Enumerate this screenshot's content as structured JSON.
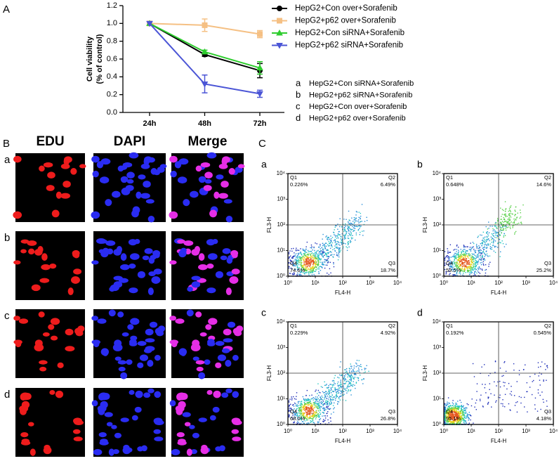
{
  "panel_labels": [
    "A",
    "B",
    "C"
  ],
  "chart_data": [
    {
      "type": "line",
      "ylabel": [
        "Cell viability",
        "(% of control)"
      ],
      "categories": [
        "24h",
        "48h",
        "72h"
      ],
      "ylim": [
        0,
        1.2
      ],
      "yticks": [
        {
          "value": 0,
          "label": "0.0"
        },
        0.2,
        0.4,
        0.6,
        0.8,
        {
          "value": 1,
          "label": "1.0"
        },
        1.2
      ],
      "series": [
        {
          "name": "HepG2+Con over+Sorafenib",
          "color": "#000000",
          "marker": "circle",
          "values": [
            1.0,
            0.65,
            0.47
          ],
          "errors": [
            0,
            0.02,
            0.08
          ]
        },
        {
          "name": "HepG2+p62 over+Sorafenib",
          "color": "#f5c084",
          "marker": "square",
          "values": [
            1.0,
            0.98,
            0.88
          ],
          "errors": [
            0,
            0.07,
            0.04
          ]
        },
        {
          "name": "HepG2+Con siRNA+Sorafenib",
          "color": "#2ecc2e",
          "marker": "triangle",
          "values": [
            1.0,
            0.68,
            0.5
          ],
          "errors": [
            0,
            0.02,
            0.07
          ]
        },
        {
          "name": "HepG2+p62 siRNA+Sorafenib",
          "color": "#4b55d6",
          "marker": "triangle-down",
          "values": [
            1.0,
            0.32,
            0.21
          ],
          "errors": [
            0,
            0.1,
            0.04
          ]
        }
      ],
      "key": [
        {
          "letter": "a",
          "text": "HepG2+Con siRNA+Sorafenib"
        },
        {
          "letter": "b",
          "text": "HepG2+p62 siRNA+Sorafenib"
        },
        {
          "letter": "c",
          "text": "HepG2+Con over+Sorafenib"
        },
        {
          "letter": "d",
          "text": "HepG2+p62 over+Sorafenib"
        }
      ]
    },
    {
      "type": "flow",
      "label": "a",
      "xlabel": "FL4-H",
      "ylabel": "FL3-H",
      "log": true,
      "xlim": [
        1,
        10000
      ],
      "ylim": [
        1,
        10000
      ],
      "xticks": [
        {
          "value": 1,
          "label": "10⁰"
        },
        {
          "value": 10,
          "label": "10¹"
        },
        {
          "value": 100,
          "label": "10²"
        },
        {
          "value": 1000,
          "label": "10³"
        },
        {
          "value": 10000,
          "label": "10⁴"
        }
      ],
      "yticks": [
        {
          "value": 1,
          "label": "10⁰"
        },
        {
          "value": 10,
          "label": "10¹"
        },
        {
          "value": 100,
          "label": "10²"
        },
        {
          "value": 1000,
          "label": "10³"
        },
        {
          "value": 10000,
          "label": "10⁴"
        }
      ],
      "gate": [
        100,
        100
      ],
      "quadrants": [
        "Q1",
        "Q2",
        "Q3",
        "Q4"
      ],
      "values": [
        0.226,
        6.49,
        18.7,
        74.6
      ],
      "value_labels": [
        "0.226%",
        "6.49%",
        "18.7%",
        "74.6%"
      ]
    },
    {
      "type": "flow",
      "label": "b",
      "xlabel": "FL4-H",
      "ylabel": "FL3-H",
      "log": true,
      "xlim": [
        1,
        10000
      ],
      "ylim": [
        1,
        10000
      ],
      "xticks": [
        {
          "value": 1,
          "label": "10⁰"
        },
        {
          "value": 10,
          "label": "10¹"
        },
        {
          "value": 100,
          "label": "10²"
        },
        {
          "value": 1000,
          "label": "10³"
        },
        {
          "value": 10000,
          "label": "10⁴"
        }
      ],
      "yticks": [
        {
          "value": 1,
          "label": "10⁰"
        },
        {
          "value": 10,
          "label": "10¹"
        },
        {
          "value": 100,
          "label": "10²"
        },
        {
          "value": 1000,
          "label": "10³"
        },
        {
          "value": 10000,
          "label": "10⁴"
        }
      ],
      "gate": [
        100,
        100
      ],
      "quadrants": [
        "Q1",
        "Q2",
        "Q3",
        "Q4"
      ],
      "values": [
        0.648,
        14.6,
        25.2,
        59.5
      ],
      "value_labels": [
        "0.648%",
        "14.6%",
        "25.2%",
        "59.5%"
      ]
    },
    {
      "type": "flow",
      "label": "c",
      "xlabel": "FL4-H",
      "ylabel": "FL3-H",
      "log": true,
      "xlim": [
        1,
        10000
      ],
      "ylim": [
        1,
        10000
      ],
      "xticks": [
        {
          "value": 1,
          "label": "10⁰"
        },
        {
          "value": 10,
          "label": "10¹"
        },
        {
          "value": 100,
          "label": "10²"
        },
        {
          "value": 1000,
          "label": "10³"
        },
        {
          "value": 10000,
          "label": "10⁴"
        }
      ],
      "yticks": [
        {
          "value": 1,
          "label": "10⁰"
        },
        {
          "value": 10,
          "label": "10¹"
        },
        {
          "value": 100,
          "label": "10²"
        },
        {
          "value": 1000,
          "label": "10³"
        },
        {
          "value": 10000,
          "label": "10⁴"
        }
      ],
      "gate": [
        100,
        100
      ],
      "quadrants": [
        "Q1",
        "Q2",
        "Q3",
        "Q4"
      ],
      "values": [
        0.229,
        4.92,
        26.8,
        68.0
      ],
      "value_labels": [
        "0.229%",
        "4.92%",
        "26.8%",
        "68.0%"
      ]
    },
    {
      "type": "flow",
      "label": "d",
      "xlabel": "FL4-H",
      "ylabel": "FL3-H",
      "log": true,
      "xlim": [
        1,
        10000
      ],
      "ylim": [
        1,
        10000
      ],
      "xticks": [
        {
          "value": 1,
          "label": "10⁰"
        },
        {
          "value": 10,
          "label": "10¹"
        },
        {
          "value": 100,
          "label": "10²"
        },
        {
          "value": 1000,
          "label": "10³"
        },
        {
          "value": 10000,
          "label": "10⁴"
        }
      ],
      "yticks": [
        {
          "value": 1,
          "label": "10⁰"
        },
        {
          "value": 10,
          "label": "10¹"
        },
        {
          "value": 100,
          "label": "10²"
        },
        {
          "value": 1000,
          "label": "10³"
        },
        {
          "value": 10000,
          "label": "10⁴"
        }
      ],
      "gate": [
        100,
        100
      ],
      "quadrants": [
        "Q1",
        "Q2",
        "Q3",
        "Q4"
      ],
      "values": [
        0.192,
        0.545,
        4.18,
        95.1
      ],
      "value_labels": [
        "0.192%",
        "0.545%",
        "4.18%",
        "95.1%"
      ]
    }
  ],
  "microscopy": {
    "columns": [
      "EDU",
      "DAPI",
      "Merge"
    ],
    "rows": [
      "a",
      "b",
      "c",
      "d"
    ]
  }
}
